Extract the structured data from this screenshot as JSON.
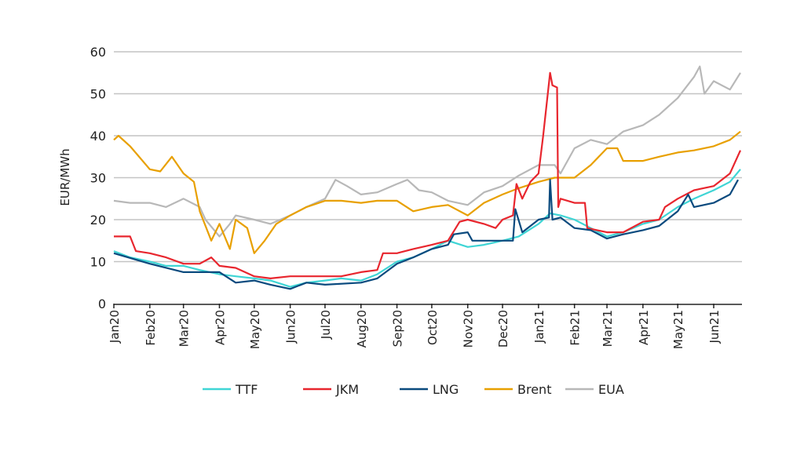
{
  "chart_data": {
    "type": "line",
    "title": "",
    "xlabel": "",
    "ylabel": "EUR/MWh",
    "ylim": [
      0,
      60
    ],
    "yticks": [
      0,
      10,
      20,
      30,
      40,
      50,
      60
    ],
    "xlim": [
      "2020-01-01",
      "2021-06-30"
    ],
    "xtick_labels": [
      {
        "date": "2020-01-01",
        "label": "Jan20"
      },
      {
        "date": "2020-02-01",
        "label": "Feb20"
      },
      {
        "date": "2020-03-01",
        "label": "Mar20"
      },
      {
        "date": "2020-04-01",
        "label": "Apr20"
      },
      {
        "date": "2020-05-01",
        "label": "May20"
      },
      {
        "date": "2020-06-01",
        "label": "Jun20"
      },
      {
        "date": "2020-07-01",
        "label": "Jul20"
      },
      {
        "date": "2020-08-01",
        "label": "Aug20"
      },
      {
        "date": "2020-09-01",
        "label": "Sep20"
      },
      {
        "date": "2020-10-01",
        "label": "Oct20"
      },
      {
        "date": "2020-11-01",
        "label": "Nov20"
      },
      {
        "date": "2020-12-01",
        "label": "Dec20"
      },
      {
        "date": "2021-01-01",
        "label": "Jan21"
      },
      {
        "date": "2021-02-01",
        "label": "Feb21"
      },
      {
        "date": "2021-03-01",
        "label": "Mar21"
      },
      {
        "date": "2021-04-01",
        "label": "Apr21"
      },
      {
        "date": "2021-05-01",
        "label": "May21"
      },
      {
        "date": "2021-06-01",
        "label": "Jun21"
      }
    ],
    "grid": "horizontal",
    "legend": "bottom",
    "series": [
      {
        "name": "TTF",
        "color": "#3fd5d5",
        "points": [
          [
            "2020-01-01",
            12.5
          ],
          [
            "2020-01-15",
            11
          ],
          [
            "2020-02-01",
            10
          ],
          [
            "2020-02-15",
            9
          ],
          [
            "2020-03-01",
            9
          ],
          [
            "2020-03-15",
            8
          ],
          [
            "2020-04-01",
            7
          ],
          [
            "2020-04-15",
            6.5
          ],
          [
            "2020-05-01",
            6
          ],
          [
            "2020-05-15",
            5.5
          ],
          [
            "2020-06-01",
            4
          ],
          [
            "2020-06-15",
            5
          ],
          [
            "2020-07-01",
            5.5
          ],
          [
            "2020-07-15",
            6
          ],
          [
            "2020-08-01",
            5.5
          ],
          [
            "2020-08-15",
            7
          ],
          [
            "2020-09-01",
            10
          ],
          [
            "2020-09-15",
            11
          ],
          [
            "2020-10-01",
            13
          ],
          [
            "2020-10-15",
            15
          ],
          [
            "2020-11-01",
            13.5
          ],
          [
            "2020-11-15",
            14
          ],
          [
            "2020-12-01",
            15
          ],
          [
            "2020-12-15",
            16
          ],
          [
            "2021-01-01",
            19
          ],
          [
            "2021-01-11",
            21.5
          ],
          [
            "2021-01-20",
            21
          ],
          [
            "2021-02-01",
            20
          ],
          [
            "2021-02-15",
            18
          ],
          [
            "2021-03-01",
            16
          ],
          [
            "2021-03-15",
            17
          ],
          [
            "2021-04-01",
            19
          ],
          [
            "2021-04-15",
            20
          ],
          [
            "2021-05-01",
            23
          ],
          [
            "2021-05-15",
            25
          ],
          [
            "2021-06-01",
            27
          ],
          [
            "2021-06-15",
            29
          ],
          [
            "2021-06-24",
            32
          ]
        ]
      },
      {
        "name": "JKM",
        "color": "#e8262e",
        "points": [
          [
            "2020-01-01",
            16
          ],
          [
            "2020-01-15",
            16
          ],
          [
            "2020-01-20",
            12.5
          ],
          [
            "2020-02-01",
            12
          ],
          [
            "2020-02-15",
            11
          ],
          [
            "2020-03-01",
            9.5
          ],
          [
            "2020-03-15",
            9.5
          ],
          [
            "2020-03-25",
            11
          ],
          [
            "2020-04-01",
            9
          ],
          [
            "2020-04-15",
            8.5
          ],
          [
            "2020-05-01",
            6.5
          ],
          [
            "2020-05-15",
            6
          ],
          [
            "2020-06-01",
            6.5
          ],
          [
            "2020-06-15",
            6.5
          ],
          [
            "2020-07-01",
            6.5
          ],
          [
            "2020-07-15",
            6.5
          ],
          [
            "2020-08-01",
            7.5
          ],
          [
            "2020-08-15",
            8
          ],
          [
            "2020-08-20",
            12
          ],
          [
            "2020-09-01",
            12
          ],
          [
            "2020-09-15",
            13
          ],
          [
            "2020-10-01",
            14
          ],
          [
            "2020-10-15",
            15
          ],
          [
            "2020-10-25",
            19.5
          ],
          [
            "2020-11-01",
            20
          ],
          [
            "2020-11-15",
            19
          ],
          [
            "2020-11-25",
            18
          ],
          [
            "2020-12-01",
            20
          ],
          [
            "2020-12-10",
            21
          ],
          [
            "2020-12-13",
            28.5
          ],
          [
            "2020-12-18",
            25
          ],
          [
            "2020-12-25",
            29
          ],
          [
            "2021-01-01",
            31
          ],
          [
            "2021-01-05",
            40
          ],
          [
            "2021-01-11",
            55
          ],
          [
            "2021-01-13",
            52
          ],
          [
            "2021-01-17",
            51.5
          ],
          [
            "2021-01-18",
            23
          ],
          [
            "2021-01-20",
            25
          ],
          [
            "2021-02-01",
            24
          ],
          [
            "2021-02-10",
            24
          ],
          [
            "2021-02-12",
            18
          ],
          [
            "2021-03-01",
            17
          ],
          [
            "2021-03-15",
            17
          ],
          [
            "2021-04-01",
            19.5
          ],
          [
            "2021-04-15",
            20
          ],
          [
            "2021-04-20",
            23
          ],
          [
            "2021-05-01",
            25
          ],
          [
            "2021-05-15",
            27
          ],
          [
            "2021-06-01",
            28
          ],
          [
            "2021-06-15",
            31
          ],
          [
            "2021-06-24",
            36.5
          ]
        ]
      },
      {
        "name": "LNG",
        "color": "#0a4a7e",
        "points": [
          [
            "2020-01-01",
            12
          ],
          [
            "2020-02-01",
            9.5
          ],
          [
            "2020-03-01",
            7.5
          ],
          [
            "2020-04-01",
            7.5
          ],
          [
            "2020-04-15",
            5
          ],
          [
            "2020-05-01",
            5.5
          ],
          [
            "2020-05-15",
            4.5
          ],
          [
            "2020-06-01",
            3.5
          ],
          [
            "2020-06-15",
            5
          ],
          [
            "2020-07-01",
            4.5
          ],
          [
            "2020-08-01",
            5
          ],
          [
            "2020-08-15",
            6
          ],
          [
            "2020-09-01",
            9.5
          ],
          [
            "2020-09-15",
            11
          ],
          [
            "2020-10-01",
            13
          ],
          [
            "2020-10-15",
            14
          ],
          [
            "2020-10-20",
            16.5
          ],
          [
            "2020-11-01",
            17
          ],
          [
            "2020-11-05",
            15
          ],
          [
            "2020-12-01",
            15
          ],
          [
            "2020-12-10",
            15
          ],
          [
            "2020-12-12",
            22.5
          ],
          [
            "2020-12-18",
            17
          ],
          [
            "2021-01-01",
            20
          ],
          [
            "2021-01-10",
            20.5
          ],
          [
            "2021-01-11",
            29.5
          ],
          [
            "2021-01-13",
            20
          ],
          [
            "2021-01-20",
            20.5
          ],
          [
            "2021-02-01",
            18
          ],
          [
            "2021-02-15",
            17.5
          ],
          [
            "2021-03-01",
            15.5
          ],
          [
            "2021-03-15",
            16.5
          ],
          [
            "2021-04-01",
            17.5
          ],
          [
            "2021-04-15",
            18.5
          ],
          [
            "2021-05-01",
            22
          ],
          [
            "2021-05-10",
            26
          ],
          [
            "2021-05-15",
            23
          ],
          [
            "2021-06-01",
            24
          ],
          [
            "2021-06-15",
            26
          ],
          [
            "2021-06-22",
            29.5
          ]
        ]
      },
      {
        "name": "Brent",
        "color": "#e8a000",
        "points": [
          [
            "2020-01-01",
            39
          ],
          [
            "2020-01-05",
            40
          ],
          [
            "2020-01-15",
            37.5
          ],
          [
            "2020-02-01",
            32
          ],
          [
            "2020-02-10",
            31.5
          ],
          [
            "2020-02-20",
            35
          ],
          [
            "2020-03-01",
            31
          ],
          [
            "2020-03-10",
            29
          ],
          [
            "2020-03-15",
            22
          ],
          [
            "2020-03-25",
            15
          ],
          [
            "2020-04-01",
            19
          ],
          [
            "2020-04-10",
            13
          ],
          [
            "2020-04-15",
            20
          ],
          [
            "2020-04-25",
            18
          ],
          [
            "2020-05-01",
            12
          ],
          [
            "2020-05-10",
            15
          ],
          [
            "2020-05-20",
            19
          ],
          [
            "2020-06-01",
            21
          ],
          [
            "2020-06-15",
            23
          ],
          [
            "2020-07-01",
            24.5
          ],
          [
            "2020-07-15",
            24.5
          ],
          [
            "2020-08-01",
            24
          ],
          [
            "2020-08-15",
            24.5
          ],
          [
            "2020-09-01",
            24.5
          ],
          [
            "2020-09-15",
            22
          ],
          [
            "2020-10-01",
            23
          ],
          [
            "2020-10-15",
            23.5
          ],
          [
            "2020-11-01",
            21
          ],
          [
            "2020-11-15",
            24
          ],
          [
            "2020-12-01",
            26
          ],
          [
            "2020-12-15",
            27.5
          ],
          [
            "2021-01-01",
            29
          ],
          [
            "2021-01-15",
            30
          ],
          [
            "2021-02-01",
            30
          ],
          [
            "2021-02-15",
            33
          ],
          [
            "2021-03-01",
            37
          ],
          [
            "2021-03-10",
            37
          ],
          [
            "2021-03-15",
            34
          ],
          [
            "2021-04-01",
            34
          ],
          [
            "2021-04-15",
            35
          ],
          [
            "2021-05-01",
            36
          ],
          [
            "2021-05-15",
            36.5
          ],
          [
            "2021-06-01",
            37.5
          ],
          [
            "2021-06-15",
            39
          ],
          [
            "2021-06-24",
            41
          ]
        ]
      },
      {
        "name": "EUA",
        "color": "#b8b8b8",
        "points": [
          [
            "2020-01-01",
            24.5
          ],
          [
            "2020-01-15",
            24
          ],
          [
            "2020-02-01",
            24
          ],
          [
            "2020-02-15",
            23
          ],
          [
            "2020-03-01",
            25
          ],
          [
            "2020-03-15",
            23
          ],
          [
            "2020-03-20",
            20
          ],
          [
            "2020-04-01",
            16
          ],
          [
            "2020-04-10",
            19
          ],
          [
            "2020-04-15",
            21
          ],
          [
            "2020-05-01",
            20
          ],
          [
            "2020-05-15",
            19
          ],
          [
            "2020-06-01",
            21
          ],
          [
            "2020-06-15",
            23
          ],
          [
            "2020-07-01",
            25
          ],
          [
            "2020-07-10",
            29.5
          ],
          [
            "2020-07-20",
            28
          ],
          [
            "2020-08-01",
            26
          ],
          [
            "2020-08-15",
            26.5
          ],
          [
            "2020-09-01",
            28.5
          ],
          [
            "2020-09-10",
            29.5
          ],
          [
            "2020-09-20",
            27
          ],
          [
            "2020-10-01",
            26.5
          ],
          [
            "2020-10-15",
            24.5
          ],
          [
            "2020-11-01",
            23.5
          ],
          [
            "2020-11-15",
            26.5
          ],
          [
            "2020-12-01",
            28
          ],
          [
            "2020-12-15",
            30.5
          ],
          [
            "2021-01-01",
            33
          ],
          [
            "2021-01-15",
            33
          ],
          [
            "2021-01-20",
            31
          ],
          [
            "2021-02-01",
            37
          ],
          [
            "2021-02-15",
            39
          ],
          [
            "2021-03-01",
            38
          ],
          [
            "2021-03-15",
            41
          ],
          [
            "2021-04-01",
            42.5
          ],
          [
            "2021-04-15",
            45
          ],
          [
            "2021-05-01",
            49
          ],
          [
            "2021-05-15",
            54
          ],
          [
            "2021-05-20",
            56.5
          ],
          [
            "2021-05-24",
            50
          ],
          [
            "2021-06-01",
            53
          ],
          [
            "2021-06-15",
            51
          ],
          [
            "2021-06-24",
            55
          ]
        ]
      }
    ]
  }
}
